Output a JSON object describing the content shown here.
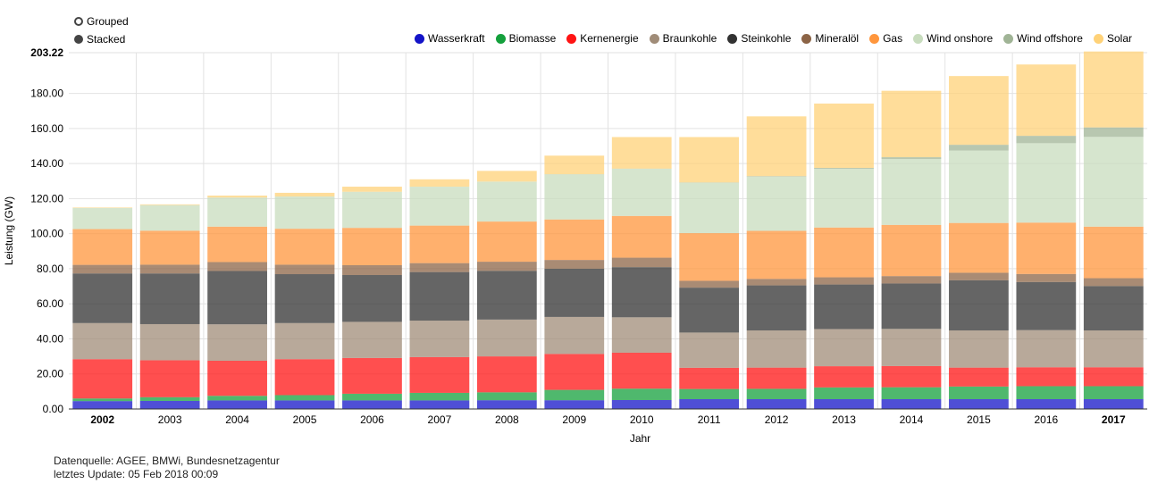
{
  "controls": {
    "grouped_label": "Grouped",
    "stacked_label": "Stacked",
    "selected": "Stacked"
  },
  "footer": {
    "source": "Datenquelle: AGEE, BMWi, Bundesnetzagentur",
    "update": "letztes Update: 05 Feb 2018 00:09"
  },
  "chart_data": {
    "type": "bar",
    "stacked": true,
    "title": "",
    "xlabel": "Jahr",
    "ylabel": "Leistung (GW)",
    "ylim": [
      0,
      203.22
    ],
    "y_ticks": [
      "0.00",
      "20.00",
      "40.00",
      "60.00",
      "80.00",
      "100.00",
      "120.00",
      "140.00",
      "160.00",
      "180.00",
      "203.22"
    ],
    "grid": true,
    "legend_position": "top-right",
    "bold_categories": [
      "2002",
      "2017"
    ],
    "categories": [
      "2002",
      "2003",
      "2004",
      "2005",
      "2006",
      "2007",
      "2008",
      "2009",
      "2010",
      "2011",
      "2012",
      "2013",
      "2014",
      "2015",
      "2016",
      "2017"
    ],
    "series": [
      {
        "name": "Wasserkraft",
        "color": "#1414c8",
        "values": [
          4.5,
          4.6,
          4.9,
          4.9,
          4.9,
          4.9,
          5.0,
          5.0,
          5.1,
          5.6,
          5.6,
          5.6,
          5.6,
          5.6,
          5.6,
          5.6
        ]
      },
      {
        "name": "Biomasse",
        "color": "#14a03c",
        "values": [
          1.5,
          2.1,
          2.6,
          3.0,
          3.8,
          4.3,
          4.5,
          5.9,
          6.5,
          5.8,
          5.9,
          6.7,
          6.8,
          7.2,
          7.4,
          7.4
        ]
      },
      {
        "name": "Kernenergie",
        "color": "#ff1414",
        "values": [
          22.4,
          21.1,
          20.0,
          20.5,
          20.4,
          20.4,
          20.5,
          20.5,
          20.5,
          12.1,
          12.1,
          12.1,
          12.1,
          10.8,
          10.8,
          10.8
        ]
      },
      {
        "name": "Braunkohle",
        "color": "#a08c78",
        "values": [
          20.6,
          20.6,
          20.8,
          20.6,
          20.6,
          20.8,
          21.0,
          21.1,
          20.2,
          20.1,
          21.2,
          21.2,
          21.2,
          21.2,
          21.2,
          21.0
        ]
      },
      {
        "name": "Steinkohle",
        "color": "#323232",
        "values": [
          28.3,
          28.9,
          30.4,
          27.9,
          26.7,
          27.7,
          27.8,
          27.5,
          28.6,
          25.6,
          25.7,
          25.4,
          25.9,
          28.6,
          27.4,
          25.3
        ]
      },
      {
        "name": "Mineralöl",
        "color": "#8c6446",
        "values": [
          4.9,
          5.0,
          5.1,
          5.4,
          5.6,
          5.1,
          5.2,
          5.0,
          5.4,
          3.9,
          3.7,
          4.1,
          4.2,
          4.3,
          4.6,
          4.5
        ]
      },
      {
        "name": "Gas",
        "color": "#ff963c",
        "values": [
          20.4,
          19.4,
          20.2,
          20.5,
          21.3,
          21.4,
          22.9,
          23.1,
          23.8,
          27.2,
          27.4,
          28.4,
          29.2,
          28.4,
          29.3,
          29.4
        ]
      },
      {
        "name": "Wind onshore",
        "color": "#c8dcbe",
        "values": [
          12.0,
          14.6,
          16.6,
          18.4,
          20.6,
          22.2,
          22.8,
          25.7,
          26.9,
          28.7,
          30.9,
          33.5,
          37.6,
          41.3,
          45.3,
          51.2
        ]
      },
      {
        "name": "Wind offshore",
        "color": "#a0b496",
        "values": [
          0,
          0,
          0,
          0,
          0,
          0,
          0,
          0.1,
          0.1,
          0.2,
          0.3,
          0.5,
          1.0,
          3.3,
          4.2,
          5.4
        ]
      },
      {
        "name": "Solar",
        "color": "#ffd278",
        "values": [
          0.3,
          0.4,
          1.1,
          2.1,
          2.9,
          4.2,
          6.1,
          10.6,
          18.0,
          25.9,
          34.1,
          36.7,
          37.9,
          39.2,
          40.7,
          43.3
        ]
      }
    ]
  }
}
